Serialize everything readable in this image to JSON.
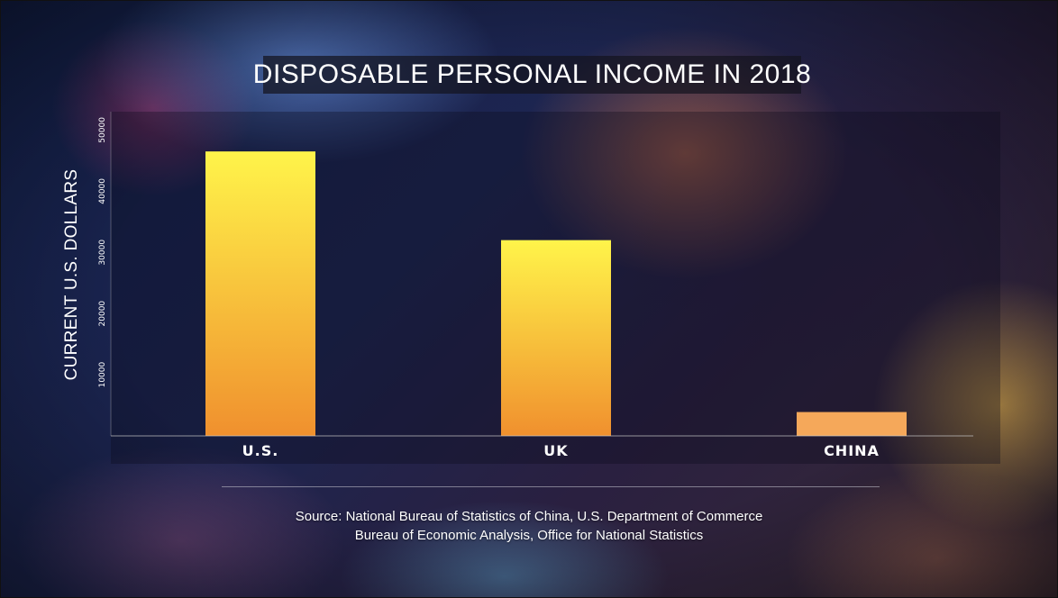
{
  "chart_data": {
    "type": "bar",
    "title": "DISPOSABLE PERSONAL INCOME IN 2018",
    "xlabel": "",
    "ylabel": "CURRENT U.S. DOLLARS",
    "categories": [
      "U.S.",
      "UK",
      "CHINA"
    ],
    "values": [
      46500,
      32000,
      3900
    ],
    "ylim": [
      0,
      53000
    ],
    "yticks": [
      10000,
      20000,
      30000,
      40000,
      50000
    ],
    "ytick_labels": [
      "10000",
      "20000",
      "30000",
      "40000",
      "50000"
    ],
    "grid": false,
    "colors": {
      "bar_top": "#fff44a",
      "bar_bottom": "#f0902e",
      "china_bar": "#f5a85a"
    }
  },
  "source": {
    "line1": "Source: National Bureau of Statistics of China, U.S. Department of Commerce",
    "line2": "Bureau of Economic Analysis, Office for National Statistics"
  }
}
